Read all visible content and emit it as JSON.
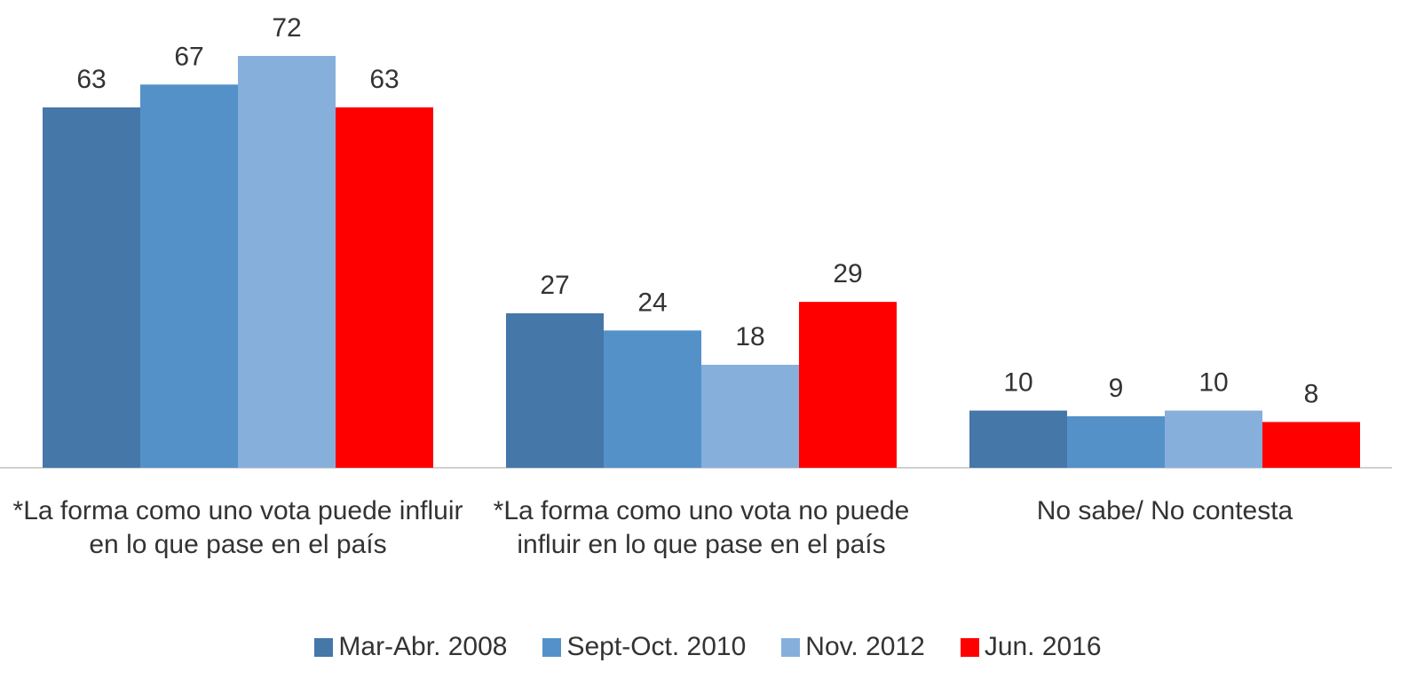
{
  "chart_data": {
    "type": "bar",
    "categories": [
      "*La forma como uno vota puede influir en lo que pase en el país",
      "*La forma como uno vota no puede influir en lo que pase en el país",
      "No sabe/ No contesta"
    ],
    "series": [
      {
        "name": "Mar-Abr. 2008",
        "color": "#4577a8",
        "values": [
          63,
          27,
          10
        ]
      },
      {
        "name": "Sept-Oct. 2010",
        "color": "#5591c9",
        "values": [
          67,
          24,
          9
        ]
      },
      {
        "name": "Nov. 2012",
        "color": "#86afdc",
        "values": [
          72,
          18,
          10
        ]
      },
      {
        "name": "Jun. 2016",
        "color": "#ff0000",
        "values": [
          63,
          29,
          8
        ]
      }
    ]
  }
}
